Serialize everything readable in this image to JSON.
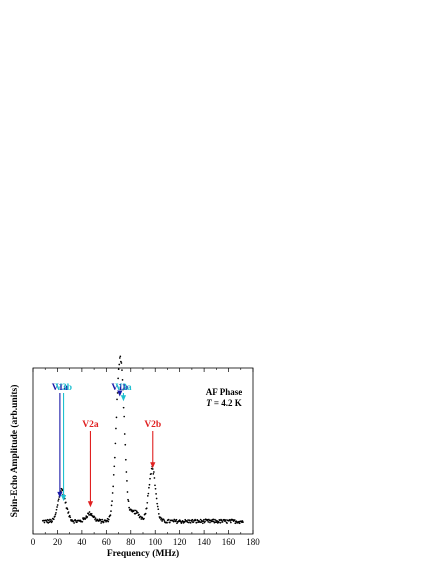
{
  "chart_data": {
    "type": "scatter",
    "xlabel": "Frequency (MHz)",
    "ylabel": "Spin-Echo Amplitude (arb.units)",
    "xlim": [
      0,
      180
    ],
    "ylim": [
      0,
      1
    ],
    "xticks": [
      0,
      20,
      40,
      60,
      80,
      100,
      120,
      140,
      160,
      180
    ],
    "grid": false,
    "legend": "none",
    "text_annotations": [
      {
        "text": "AF Phase"
      },
      {
        "text_italic": "T",
        "text": " = 4.2 K"
      }
    ],
    "arrows": [
      {
        "label": "V1a",
        "x": 22,
        "y_tip": 0.18,
        "color": "#1a1aa8"
      },
      {
        "label": "V3b",
        "x": 25,
        "y_tip": 0.16,
        "color": "#20c0d0"
      },
      {
        "label": "V2a",
        "x": 47,
        "y_tip": 0.12,
        "color": "#e02020"
      },
      {
        "label": "V1b",
        "x": 71,
        "y_tip": 0.83,
        "color": "#1a1aa8"
      },
      {
        "label": "V3a",
        "x": 74,
        "y_tip": 0.8,
        "color": "#20c0d0"
      },
      {
        "label": "V2b",
        "x": 98,
        "y_tip": 0.37,
        "color": "#e02020"
      }
    ],
    "peaks": [
      {
        "x": 22.5,
        "amplitude": 0.14,
        "width": 2.5
      },
      {
        "x": 25.5,
        "amplitude": 0.09,
        "width": 3.0
      },
      {
        "x": 46.5,
        "amplitude": 0.05,
        "width": 3.0
      },
      {
        "x": 70.5,
        "amplitude": 0.84,
        "width": 3.0
      },
      {
        "x": 73.5,
        "amplitude": 0.35,
        "width": 2.5
      },
      {
        "x": 83.0,
        "amplitude": 0.06,
        "width": 4.0
      },
      {
        "x": 97.5,
        "amplitude": 0.34,
        "width": 2.8
      }
    ],
    "baseline": 0.03,
    "x_start": 8,
    "x_end": 172,
    "x_step": 0.45
  }
}
